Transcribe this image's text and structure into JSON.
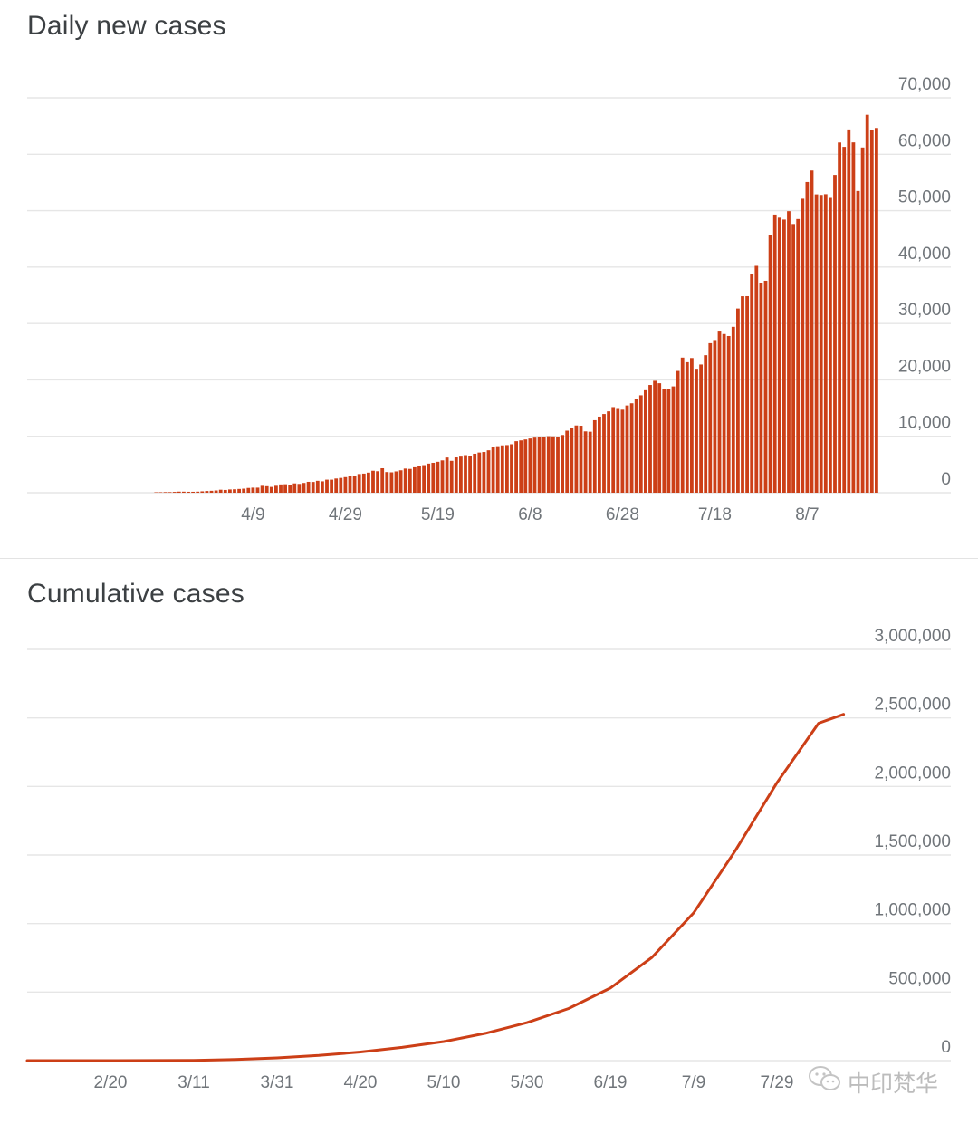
{
  "chart_data": [
    {
      "type": "bar",
      "title": "Daily new cases",
      "color": "#cc3f17",
      "ylim": [
        0,
        70000
      ],
      "yticks": [
        "0",
        "10,000",
        "20,000",
        "30,000",
        "40,000",
        "50,000",
        "60,000",
        "70,000"
      ],
      "x_tick_labels": [
        "4/9",
        "4/29",
        "5/19",
        "6/8",
        "6/28",
        "7/18",
        "8/7"
      ],
      "x_range": [
        "3/19",
        "8/14"
      ],
      "values": [
        76,
        82,
        105,
        103,
        144,
        194,
        189,
        168,
        167,
        191,
        246,
        307,
        341,
        400,
        530,
        489,
        578,
        606,
        668,
        717,
        846,
        899,
        896,
        1223,
        1153,
        1025,
        1230,
        1469,
        1500,
        1418,
        1649,
        1561,
        1732,
        1931,
        1907,
        2111,
        2019,
        2314,
        2314,
        2519,
        2622,
        2762,
        3022,
        2925,
        3311,
        3387,
        3561,
        3895,
        3811,
        4336,
        3662,
        3612,
        3777,
        3974,
        4279,
        4223,
        4510,
        4713,
        4890,
        5161,
        5301,
        5482,
        5733,
        6238,
        5656,
        6258,
        6399,
        6658,
        6566,
        6910,
        7122,
        7217,
        7521,
        8093,
        8245,
        8389,
        8441,
        8592,
        9131,
        9276,
        9441,
        9611,
        9768,
        9817,
        9913,
        10016,
        9985,
        9836,
        10227,
        10999,
        11471,
        11922,
        11877,
        10873,
        10812,
        12853,
        13492,
        13953,
        14426,
        15178,
        14849,
        14720,
        15471,
        15859,
        16618,
        17271,
        18166,
        19100,
        19840,
        19408,
        18342,
        18421,
        18848,
        21587,
        23951,
        23134,
        23876,
        21969,
        22728,
        24379,
        26506,
        27064,
        28567,
        28133,
        27777,
        29409,
        32652,
        34829,
        34843,
        38808,
        40218,
        37097,
        37574,
        45636,
        49302,
        48752,
        48419,
        49906,
        47630,
        48514,
        52113,
        55079,
        57118,
        52882,
        52783,
        52915,
        52259,
        56336,
        62088,
        61313,
        64399,
        62107,
        53486,
        61201,
        66998,
        64289,
        64658
      ]
    },
    {
      "type": "line",
      "title": "Cumulative cases",
      "color": "#cc3f17",
      "ylim": [
        0,
        3000000
      ],
      "yticks": [
        "0",
        "500,000",
        "1,000,000",
        "1,500,000",
        "2,000,000",
        "2,500,000",
        "3,000,000"
      ],
      "x_tick_labels": [
        "2/20",
        "3/11",
        "3/31",
        "4/20",
        "5/10",
        "5/30",
        "6/19",
        "7/9",
        "7/29"
      ],
      "x_range": [
        "1/31",
        "8/14"
      ],
      "x": [
        0,
        20,
        40,
        50,
        60,
        70,
        80,
        90,
        100,
        110,
        120,
        130,
        140,
        150,
        160,
        170,
        180,
        190,
        196
      ],
      "y": [
        1,
        3,
        1251,
        8446,
        20080,
        37336,
        62939,
        96169,
        138845,
        198706,
        276583,
        379892,
        529577,
        753050,
        1077618,
        1531669,
        2027074,
        2461190,
        2526192
      ]
    }
  ],
  "watermark": {
    "icon": "wechat-icon",
    "text": "中印梵华"
  }
}
